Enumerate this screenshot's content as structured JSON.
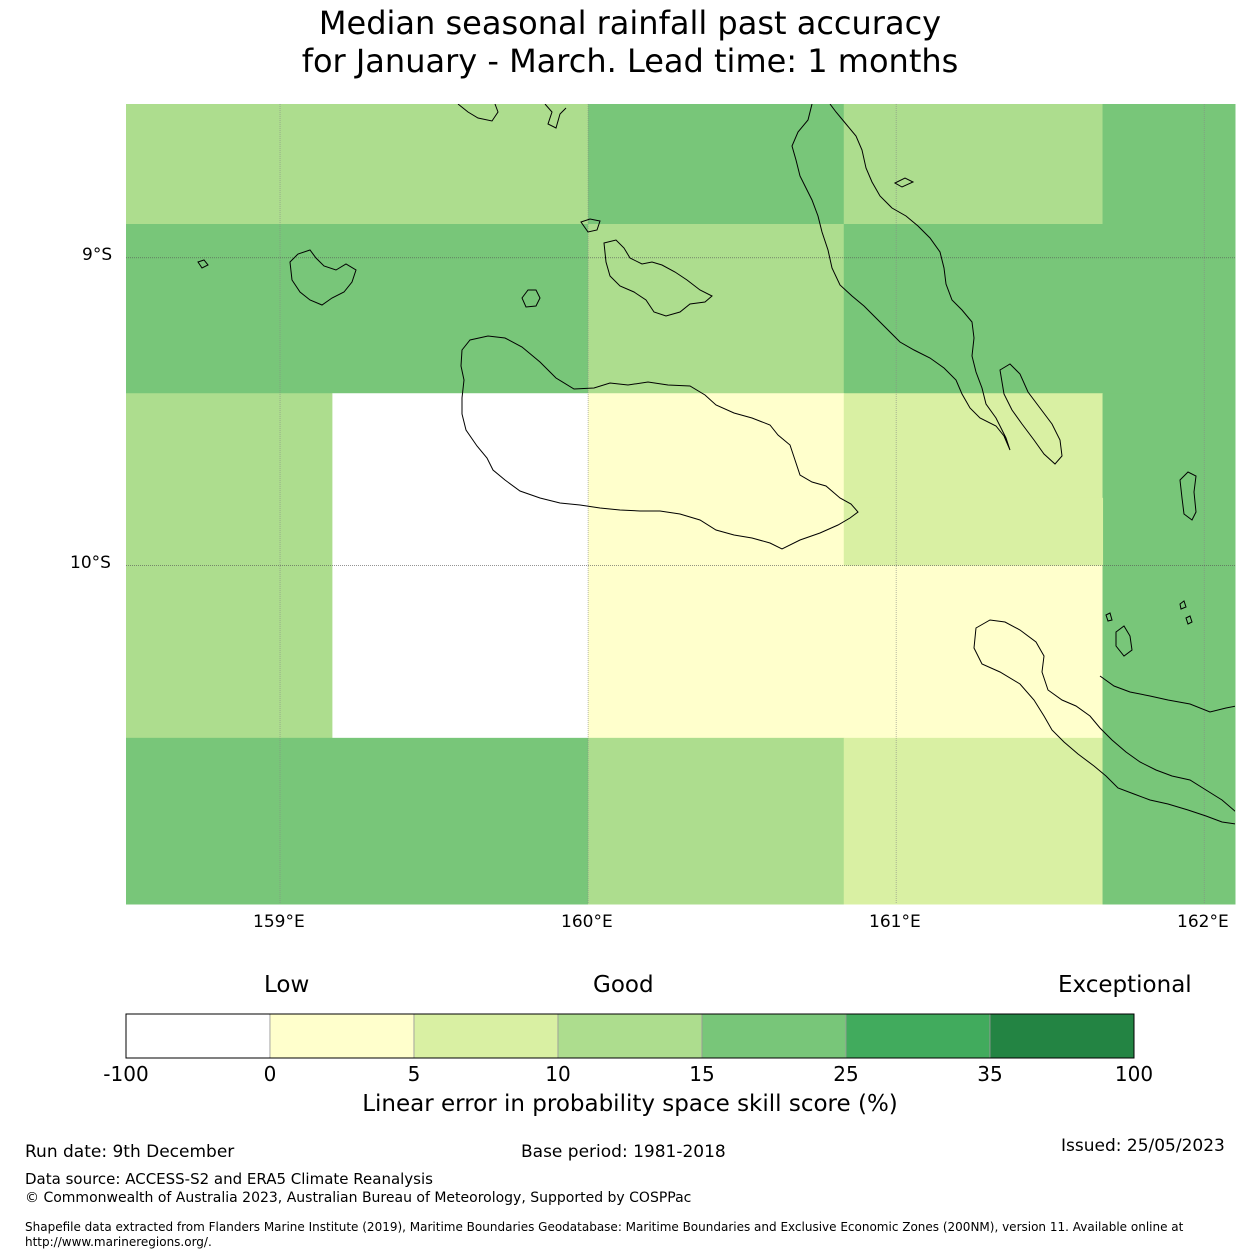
{
  "title": {
    "line1": "Median seasonal rainfall past accuracy",
    "line2": "for January - March. Lead time: 1 months"
  },
  "map": {
    "lat_labels": [
      "9°S",
      "10°S"
    ],
    "lon_labels": [
      "159°E",
      "160°E",
      "161°E",
      "162°E"
    ],
    "lat_values": [
      -9,
      -10
    ],
    "lon_values": [
      159,
      160,
      161,
      162
    ],
    "lon_range": [
      158.5,
      162.1
    ],
    "lat_range": [
      -11.1,
      -8.5
    ],
    "cells": [
      {
        "lon_min": 158.5,
        "lon_max": 160.0,
        "lat_min": -8.89,
        "lat_max": -8.5,
        "score": 12.0
      },
      {
        "lon_min": 160.0,
        "lon_max": 160.83,
        "lat_min": -8.89,
        "lat_max": -8.5,
        "score": 18.0
      },
      {
        "lon_min": 160.83,
        "lon_max": 161.67,
        "lat_min": -8.89,
        "lat_max": -8.5,
        "score": 12.0
      },
      {
        "lon_min": 161.67,
        "lon_max": 162.1,
        "lat_min": -8.89,
        "lat_max": -8.5,
        "score": 18.0
      },
      {
        "lon_min": 158.5,
        "lon_max": 160.0,
        "lat_min": -9.44,
        "lat_max": -8.89,
        "score": 18.0
      },
      {
        "lon_min": 160.0,
        "lon_max": 160.83,
        "lat_min": -9.44,
        "lat_max": -8.89,
        "score": 12.0
      },
      {
        "lon_min": 160.83,
        "lon_max": 162.1,
        "lat_min": -9.44,
        "lat_max": -8.89,
        "score": 18.0
      },
      {
        "lon_min": 158.5,
        "lon_max": 159.17,
        "lat_min": -10.0,
        "lat_max": -9.44,
        "score": 12.0
      },
      {
        "lon_min": 159.17,
        "lon_max": 160.0,
        "lat_min": -10.0,
        "lat_max": -9.44,
        "score": -20.0
      },
      {
        "lon_min": 160.0,
        "lon_max": 160.83,
        "lat_min": -10.0,
        "lat_max": -9.44,
        "score": 2.0
      },
      {
        "lon_min": 160.83,
        "lon_max": 161.67,
        "lat_min": -9.78,
        "lat_max": -9.44,
        "score": 7.0
      },
      {
        "lon_min": 161.67,
        "lon_max": 162.1,
        "lat_min": -10.0,
        "lat_max": -9.44,
        "score": 18.0
      },
      {
        "lon_min": 160.83,
        "lon_max": 161.67,
        "lat_min": -10.0,
        "lat_max": -9.78,
        "score": 7.0
      },
      {
        "lon_min": 158.5,
        "lon_max": 159.17,
        "lat_min": -10.56,
        "lat_max": -10.0,
        "score": 12.0
      },
      {
        "lon_min": 159.17,
        "lon_max": 160.0,
        "lat_min": -10.56,
        "lat_max": -10.0,
        "score": -20.0
      },
      {
        "lon_min": 160.0,
        "lon_max": 161.67,
        "lat_min": -10.56,
        "lat_max": -10.0,
        "score": 2.0
      },
      {
        "lon_min": 161.67,
        "lon_max": 162.1,
        "lat_min": -10.56,
        "lat_max": -10.0,
        "score": 18.0
      },
      {
        "lon_min": 158.5,
        "lon_max": 160.0,
        "lat_min": -11.1,
        "lat_max": -10.56,
        "score": 18.0
      },
      {
        "lon_min": 160.0,
        "lon_max": 160.83,
        "lat_min": -11.1,
        "lat_max": -10.56,
        "score": 12.0
      },
      {
        "lon_min": 160.83,
        "lon_max": 161.67,
        "lat_min": -11.1,
        "lat_max": -10.56,
        "score": 7.0
      },
      {
        "lon_min": 161.67,
        "lon_max": 162.1,
        "lat_min": -11.1,
        "lat_max": -10.56,
        "score": 18.0
      }
    ]
  },
  "colorbar": {
    "headers": {
      "low": "Low",
      "good": "Good",
      "exceptional": "Exceptional"
    },
    "bins": [
      {
        "from": -100,
        "to": 0,
        "color": "#ffffff"
      },
      {
        "from": 0,
        "to": 5,
        "color": "#ffffcc"
      },
      {
        "from": 5,
        "to": 10,
        "color": "#d9f0a3"
      },
      {
        "from": 10,
        "to": 15,
        "color": "#addd8e"
      },
      {
        "from": 15,
        "to": 25,
        "color": "#78c679"
      },
      {
        "from": 25,
        "to": 35,
        "color": "#41ab5d"
      },
      {
        "from": 35,
        "to": 100,
        "color": "#238443"
      }
    ],
    "tick_labels": [
      "-100",
      "0",
      "5",
      "10",
      "15",
      "25",
      "35",
      "100"
    ],
    "label": "Linear error in probability space skill score (%)"
  },
  "footer": {
    "run_date": "Run date: 9th December",
    "base_period": "Base period: 1981-2018",
    "issued": "Issued: 25/05/2023",
    "data_source": "Data source: ACCESS-S2 and ERA5 Climate Reanalysis",
    "copyright": "© Commonwealth of Australia 2023, Australian Bureau of Meteorology, Supported by COSPPac",
    "shapefile": "Shapefile data extracted from Flanders Marine Institute (2019), Maritime Boundaries Geodatabase: Maritime Boundaries and Exclusive Economic Zones (200NM), version 11. Available online at http://www.marineregions.org/."
  }
}
